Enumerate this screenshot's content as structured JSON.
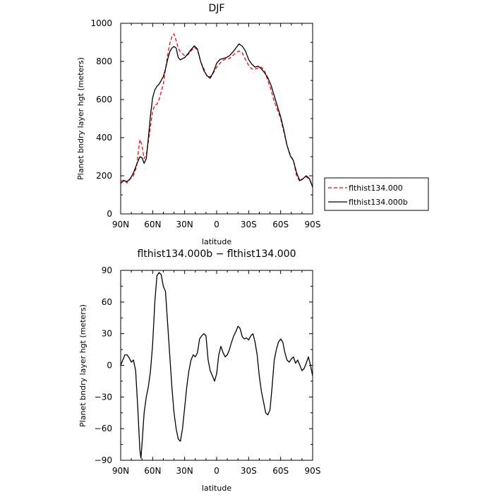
{
  "chart_data": [
    {
      "type": "line",
      "title": "DJF",
      "xlabel": "latitude",
      "ylabel": "Planet bndry layer hgt (meters)",
      "xlim": [
        90,
        -90
      ],
      "ylim": [
        0,
        1000
      ],
      "xticks": [
        90,
        60,
        30,
        0,
        -30,
        -60,
        -90
      ],
      "xtick_labels": [
        "90N",
        "60N",
        "30N",
        "0",
        "30S",
        "60S",
        "90S"
      ],
      "yticks": [
        0,
        200,
        400,
        600,
        800,
        1000
      ],
      "ytick_labels": [
        "0",
        "200",
        "400",
        "600",
        "800",
        "1000"
      ],
      "grid": false,
      "legend_position": "right",
      "series": [
        {
          "name": "flthist134.000",
          "color": "#ff0000",
          "dash": "dashed",
          "x": [
            90,
            87,
            84,
            81,
            78,
            75,
            72,
            70,
            68,
            66,
            64,
            62,
            60,
            58,
            56,
            54,
            52,
            50,
            48,
            46,
            44,
            42,
            40,
            38,
            36,
            34,
            32,
            30,
            27,
            24,
            21,
            18,
            15,
            12,
            9,
            6,
            3,
            0,
            -3,
            -6,
            -9,
            -12,
            -15,
            -18,
            -21,
            -24,
            -27,
            -30,
            -33,
            -36,
            -39,
            -42,
            -45,
            -48,
            -51,
            -54,
            -57,
            -60,
            -63,
            -66,
            -69,
            -72,
            -75,
            -78,
            -81,
            -84,
            -87,
            -90
          ],
          "values": [
            170,
            178,
            162,
            185,
            200,
            250,
            390,
            360,
            290,
            310,
            380,
            460,
            540,
            570,
            575,
            600,
            640,
            680,
            760,
            830,
            890,
            930,
            945,
            910,
            870,
            850,
            840,
            830,
            835,
            855,
            875,
            860,
            800,
            760,
            720,
            720,
            740,
            770,
            790,
            805,
            815,
            815,
            830,
            845,
            855,
            845,
            810,
            780,
            760,
            760,
            765,
            770,
            750,
            700,
            650,
            590,
            545,
            500,
            430,
            360,
            310,
            280,
            200,
            170,
            185,
            195,
            180,
            150
          ]
        },
        {
          "name": "flthist134.000b",
          "color": "#000000",
          "dash": "solid",
          "x": [
            90,
            87,
            84,
            81,
            78,
            75,
            72,
            70,
            68,
            66,
            64,
            62,
            60,
            58,
            56,
            54,
            52,
            50,
            48,
            46,
            44,
            42,
            40,
            38,
            36,
            34,
            32,
            30,
            27,
            24,
            21,
            18,
            15,
            12,
            9,
            6,
            3,
            0,
            -3,
            -6,
            -9,
            -12,
            -15,
            -18,
            -21,
            -24,
            -27,
            -30,
            -33,
            -36,
            -39,
            -42,
            -45,
            -48,
            -51,
            -54,
            -57,
            -60,
            -63,
            -66,
            -69,
            -72,
            -75,
            -78,
            -81,
            -84,
            -87,
            -90
          ],
          "values": [
            160,
            175,
            170,
            185,
            215,
            260,
            300,
            295,
            265,
            290,
            400,
            520,
            610,
            650,
            670,
            680,
            700,
            720,
            760,
            810,
            850,
            870,
            878,
            870,
            820,
            808,
            815,
            820,
            840,
            862,
            882,
            865,
            800,
            752,
            725,
            712,
            745,
            790,
            810,
            815,
            820,
            830,
            848,
            870,
            892,
            880,
            855,
            810,
            785,
            770,
            775,
            760,
            740,
            715,
            675,
            620,
            565,
            510,
            440,
            360,
            305,
            280,
            215,
            175,
            185,
            200,
            185,
            140
          ]
        }
      ]
    },
    {
      "type": "line",
      "title": "flthist134.000b − flthist134.000",
      "xlabel": "latitude",
      "ylabel": "Planet bndry layer hgt (meters)",
      "xlim": [
        90,
        -90
      ],
      "ylim": [
        -90,
        90
      ],
      "xticks": [
        90,
        60,
        30,
        0,
        -30,
        -60,
        -90
      ],
      "xtick_labels": [
        "90N",
        "60N",
        "30N",
        "0",
        "30S",
        "60S",
        "90S"
      ],
      "yticks": [
        -90,
        -60,
        -30,
        0,
        30,
        60,
        90
      ],
      "ytick_labels": [
        "−90",
        "−60",
        "−30",
        "0",
        "30",
        "60",
        "90"
      ],
      "grid": false,
      "series": [
        {
          "color": "#000000",
          "dash": "solid",
          "x": [
            90,
            88,
            86,
            84,
            82,
            80,
            78,
            76,
            74,
            72,
            71,
            70,
            68,
            66,
            64,
            62,
            60,
            58,
            56,
            54,
            52,
            50,
            48,
            46,
            44,
            42,
            40,
            38,
            36,
            34,
            32,
            30,
            28,
            26,
            24,
            22,
            20,
            18,
            16,
            14,
            12,
            10,
            8,
            6,
            4,
            2,
            0,
            -2,
            -4,
            -6,
            -8,
            -10,
            -12,
            -14,
            -16,
            -18,
            -20,
            -22,
            -24,
            -26,
            -28,
            -30,
            -32,
            -34,
            -36,
            -38,
            -40,
            -42,
            -44,
            -46,
            -48,
            -50,
            -52,
            -54,
            -56,
            -58,
            -60,
            -62,
            -64,
            -66,
            -68,
            -70,
            -72,
            -74,
            -76,
            -78,
            -80,
            -82,
            -84,
            -86,
            -88,
            -90
          ],
          "values": [
            0,
            5,
            10,
            10,
            7,
            3,
            5,
            -5,
            -40,
            -80,
            -88,
            -75,
            -45,
            -30,
            -20,
            -5,
            20,
            60,
            85,
            88,
            86,
            75,
            70,
            40,
            10,
            -20,
            -45,
            -60,
            -70,
            -72,
            -60,
            -40,
            -20,
            -5,
            5,
            10,
            8,
            12,
            25,
            28,
            30,
            28,
            5,
            -5,
            -10,
            -15,
            -8,
            10,
            18,
            12,
            8,
            10,
            15,
            22,
            28,
            32,
            37,
            35,
            27,
            25,
            26,
            24,
            28,
            30,
            22,
            10,
            -10,
            -25,
            -35,
            -45,
            -47,
            -42,
            -20,
            5,
            15,
            22,
            25,
            22,
            12,
            5,
            3,
            6,
            8,
            2,
            5,
            0,
            -5,
            -3,
            2,
            8,
            0,
            -10
          ]
        }
      ]
    }
  ]
}
